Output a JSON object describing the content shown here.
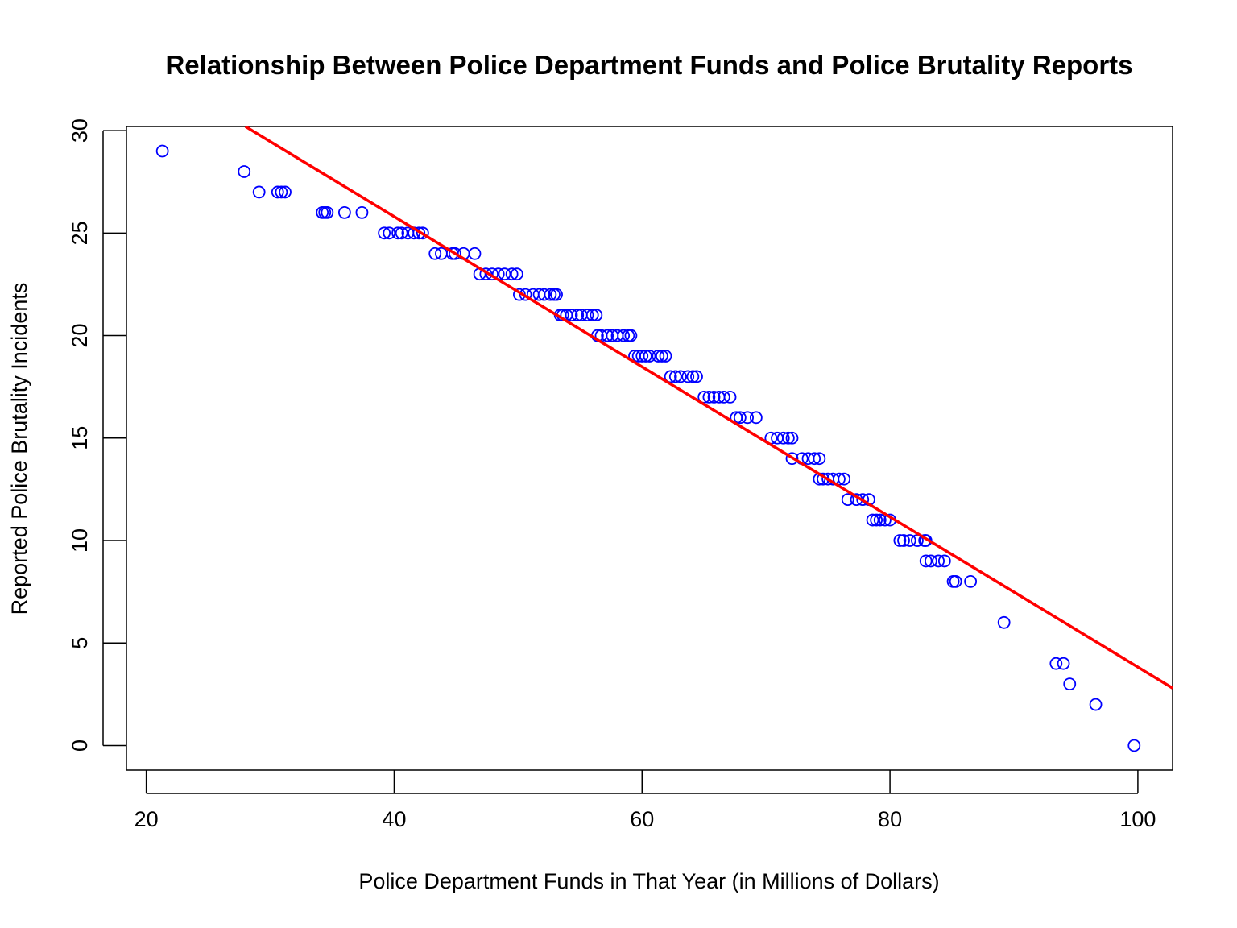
{
  "chart_data": {
    "type": "scatter",
    "title": "Relationship Between Police Department Funds and Police Brutality Reports",
    "xlabel": "Police Department Funds in That Year (in Millions of Dollars)",
    "ylabel": "Reported Police Brutality Incidents",
    "xlim": [
      18.4,
      102.8
    ],
    "ylim": [
      -1.2,
      30.2
    ],
    "xticks": [
      20,
      40,
      60,
      80,
      100
    ],
    "yticks": [
      0,
      5,
      10,
      15,
      20,
      25,
      30
    ],
    "grid": false,
    "legend": "none",
    "point_color": "#0000ff",
    "line_color": "#ff0000",
    "series": [
      {
        "kind": "points",
        "x": [
          21.3,
          27.9,
          29.1,
          30.6,
          30.9,
          31.2,
          34.2,
          34.4,
          34.6,
          36.0,
          37.4,
          39.2,
          39.6,
          40.3,
          40.6,
          41.1,
          41.6,
          42.0,
          42.3,
          43.3,
          43.8,
          44.7,
          44.9,
          45.6,
          46.5,
          46.9,
          47.4,
          47.9,
          48.4,
          48.9,
          49.5,
          49.9,
          50.1,
          50.6,
          51.2,
          51.7,
          52.1,
          52.6,
          52.9,
          53.1,
          53.4,
          53.6,
          53.9,
          54.3,
          54.8,
          55.1,
          55.6,
          56.0,
          56.3,
          56.4,
          56.7,
          57.2,
          57.6,
          58.0,
          58.5,
          58.9,
          59.1,
          59.4,
          59.7,
          60.0,
          60.3,
          60.6,
          61.3,
          61.6,
          61.9,
          62.3,
          62.7,
          63.1,
          63.7,
          64.1,
          64.4,
          65.0,
          65.4,
          65.8,
          66.2,
          66.6,
          67.1,
          67.6,
          67.9,
          68.5,
          69.2,
          70.4,
          70.9,
          71.4,
          71.8,
          72.1,
          72.1,
          72.9,
          73.4,
          73.9,
          74.3,
          74.3,
          74.6,
          75.0,
          75.4,
          75.9,
          76.3,
          76.6,
          77.3,
          77.8,
          78.3,
          78.6,
          78.9,
          79.2,
          79.6,
          80.0,
          80.8,
          81.1,
          81.6,
          82.2,
          82.8,
          82.9,
          82.9,
          83.3,
          83.9,
          84.4,
          85.1,
          85.3,
          86.5,
          89.2,
          93.4,
          94.0,
          94.5,
          96.6,
          99.7
        ],
        "y": [
          29,
          28,
          27,
          27,
          27,
          27,
          26,
          26,
          26,
          26,
          26,
          25,
          25,
          25,
          25,
          25,
          25,
          25,
          25,
          24,
          24,
          24,
          24,
          24,
          24,
          23,
          23,
          23,
          23,
          23,
          23,
          23,
          22,
          22,
          22,
          22,
          22,
          22,
          22,
          22,
          21,
          21,
          21,
          21,
          21,
          21,
          21,
          21,
          21,
          20,
          20,
          20,
          20,
          20,
          20,
          20,
          20,
          19,
          19,
          19,
          19,
          19,
          19,
          19,
          19,
          18,
          18,
          18,
          18,
          18,
          18,
          17,
          17,
          17,
          17,
          17,
          17,
          16,
          16,
          16,
          16,
          15,
          15,
          15,
          15,
          15,
          14,
          14,
          14,
          14,
          14,
          13,
          13,
          13,
          13,
          13,
          13,
          12,
          12,
          12,
          12,
          11,
          11,
          11,
          11,
          11,
          10,
          10,
          10,
          10,
          10,
          10,
          9,
          9,
          9,
          9,
          8,
          8,
          8,
          6,
          4,
          4,
          3,
          2,
          0
        ]
      },
      {
        "kind": "line",
        "x": [
          28.0,
          102.8
        ],
        "y": [
          30.2,
          2.8
        ]
      }
    ]
  }
}
